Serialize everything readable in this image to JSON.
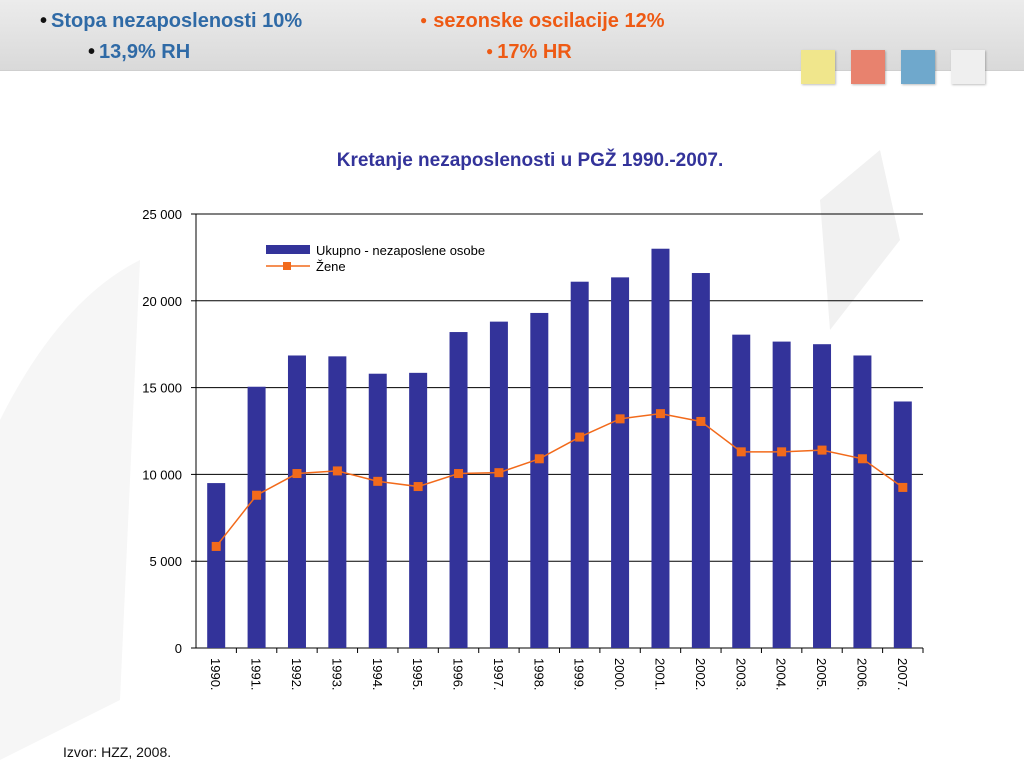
{
  "header": {
    "line1_left": "Stopa nezaposlenosti 10%",
    "line1_right": "sezonske oscilacije 12%",
    "line2_left": "13,9% RH",
    "line2_right": "17% HR",
    "bullet": "•",
    "dot_bullet": "●"
  },
  "color_squares": [
    "#f0e68c",
    "#e8826e",
    "#6fa8cc",
    "#efefef"
  ],
  "source": "Izvor: HZZ, 2008.",
  "chart_data": {
    "type": "bar",
    "title": "Kretanje nezaposlenosti u PGŽ  1990.-2007.",
    "xlabel": "",
    "ylabel": "",
    "ylim": [
      0,
      25000
    ],
    "yticks": [
      0,
      5000,
      10000,
      15000,
      20000,
      25000
    ],
    "ytick_labels": [
      "0",
      "5 000",
      "10 000",
      "15 000",
      "20 000",
      "25 000"
    ],
    "grid": true,
    "legend_position": "top-left",
    "categories": [
      "1990.",
      "1991.",
      "1992.",
      "1993.",
      "1994.",
      "1995.",
      "1996.",
      "1997.",
      "1998.",
      "1999.",
      "2000.",
      "2001.",
      "2002.",
      "2003.",
      "2004.",
      "2005.",
      "2006.",
      "2007."
    ],
    "series": [
      {
        "name": "Ukupno - nezaposlene osobe",
        "kind": "bar",
        "color": "#33339a",
        "values": [
          9500,
          15050,
          16850,
          16800,
          15800,
          15850,
          18200,
          18800,
          19300,
          21100,
          21350,
          23000,
          21600,
          18050,
          17650,
          17500,
          16850,
          14200
        ]
      },
      {
        "name": "Žene",
        "kind": "line",
        "color": "#f26a1b",
        "values": [
          5850,
          8800,
          10050,
          10200,
          9600,
          9300,
          10050,
          10100,
          10900,
          12150,
          13200,
          13500,
          13050,
          11300,
          11300,
          11400,
          10900,
          9250
        ]
      }
    ]
  }
}
